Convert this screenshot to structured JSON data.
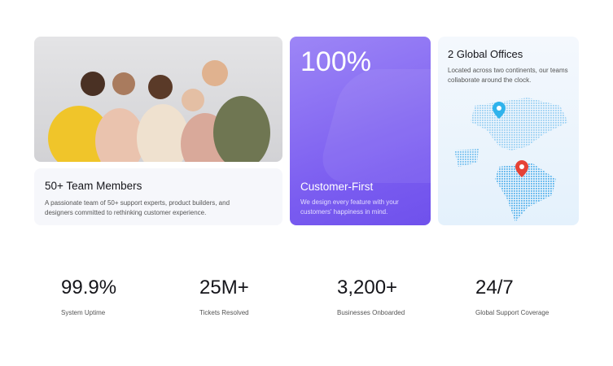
{
  "team_card": {
    "title": "50+ Team Members",
    "description": "A passionate team of 50+ support experts, product builders, and designers committed to rethinking customer experience."
  },
  "customer_card": {
    "value": "100%",
    "title": "Customer-First",
    "description": "We design every feature with your customers' happiness in mind.",
    "accent": "#7a5cf0"
  },
  "offices_card": {
    "title": "2 Global Offices",
    "description": "Located across two continents, our teams collaborate around the clock.",
    "pins": [
      {
        "color": "#2fb3ec"
      },
      {
        "color": "#e54236"
      }
    ]
  },
  "stats": [
    {
      "value": "99.9%",
      "label": "System Uptime"
    },
    {
      "value": "25M+",
      "label": "Tickets Resolved"
    },
    {
      "value": "3,200+",
      "label": "Businesses Onboarded"
    },
    {
      "value": "24/7",
      "label": "Global Support Coverage"
    }
  ]
}
